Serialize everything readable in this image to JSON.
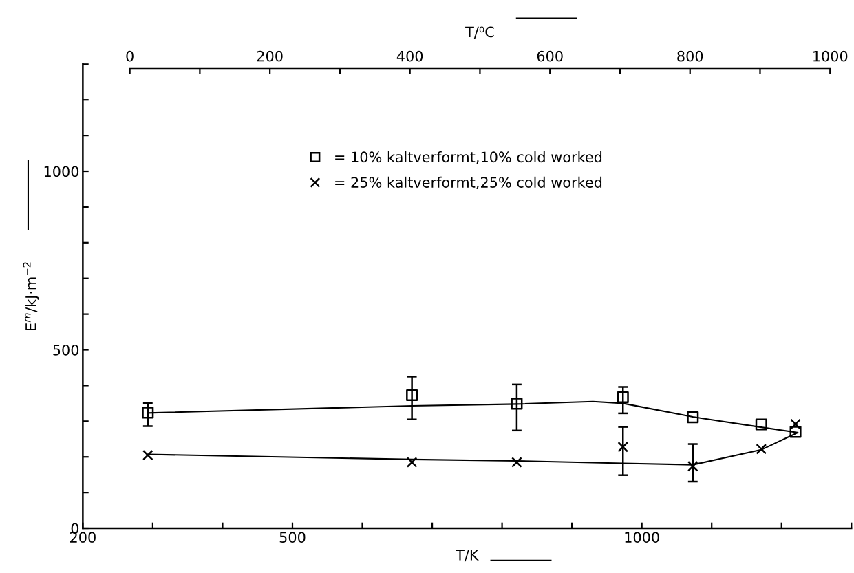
{
  "chart_data": {
    "type": "scatter",
    "xlabel": "T/K",
    "ylabel": "E$^{m}$/kJ·m$^{−2}$",
    "x2label": "T/⁰C",
    "xlim": [
      200,
      1300
    ],
    "xticks": [
      200,
      {
        "value": 300,
        "label": null
      },
      {
        "value": 400,
        "label": null
      },
      500,
      {
        "value": 600,
        "label": null
      },
      {
        "value": 700,
        "label": null
      },
      {
        "value": 800,
        "label": null
      },
      {
        "value": 900,
        "label": null
      },
      1000,
      {
        "value": 1100,
        "label": null
      },
      {
        "value": 1200,
        "label": null
      },
      {
        "value": 1300,
        "label": null
      }
    ],
    "ylim": [
      0,
      1300
    ],
    "yticks": [
      0,
      {
        "value": 100,
        "label": null
      },
      {
        "value": 200,
        "label": null
      },
      {
        "value": 300,
        "label": null
      },
      {
        "value": 400,
        "label": null
      },
      500,
      {
        "value": 600,
        "label": null
      },
      {
        "value": 700,
        "label": null
      },
      {
        "value": 800,
        "label": null
      },
      {
        "value": 900,
        "label": null
      },
      1000,
      {
        "value": 1100,
        "label": null
      },
      {
        "value": 1200,
        "label": null
      },
      {
        "value": 1300,
        "label": null
      }
    ],
    "x2lim": [
      0,
      1000
    ],
    "x2ticks": [
      0,
      {
        "value": 100,
        "label": null
      },
      200,
      {
        "value": 300,
        "label": null
      },
      400,
      {
        "value": 500,
        "label": null
      },
      600,
      {
        "value": 700,
        "label": null
      },
      800,
      {
        "value": 900,
        "label": null
      },
      1000
    ],
    "grid": false,
    "legend": "top",
    "series": [
      {
        "name": "= 10% kaltverformt,10% cold worked",
        "color": "#000000",
        "marker": "square",
        "x": [
          293,
          671,
          821,
          973,
          1073,
          1171,
          1220
        ],
        "values": [
          324,
          373,
          349,
          367,
          311,
          291,
          270
        ],
        "errors": [
          [
            286,
            351
          ],
          [
            305,
            425
          ],
          [
            274,
            403
          ],
          [
            322,
            396
          ],
          null,
          null,
          null
        ]
      },
      {
        "name": "= 25% kaltverformt,25% cold worked",
        "color": "#000000",
        "marker": "cross",
        "x": [
          293,
          671,
          821,
          973,
          1073,
          1171,
          1220
        ],
        "values": [
          205,
          185,
          185,
          228,
          174,
          222,
          292
        ],
        "errors": [
          null,
          null,
          null,
          [
            149,
            284
          ],
          [
            131,
            236
          ],
          null,
          null
        ]
      },
      {
        "type": "line",
        "color": "#000000",
        "marker": "none",
        "x": [
          293,
          671,
          821,
          930,
          973,
          1073,
          1171,
          1223
        ],
        "values": [
          323,
          343,
          348,
          355,
          350,
          312,
          283,
          268
        ]
      },
      {
        "type": "line",
        "color": "#000000",
        "marker": "none",
        "x": [
          293,
          671,
          821,
          973,
          1073,
          1171,
          1223
        ],
        "values": [
          207,
          193,
          189,
          182,
          178,
          220,
          268
        ]
      }
    ]
  }
}
